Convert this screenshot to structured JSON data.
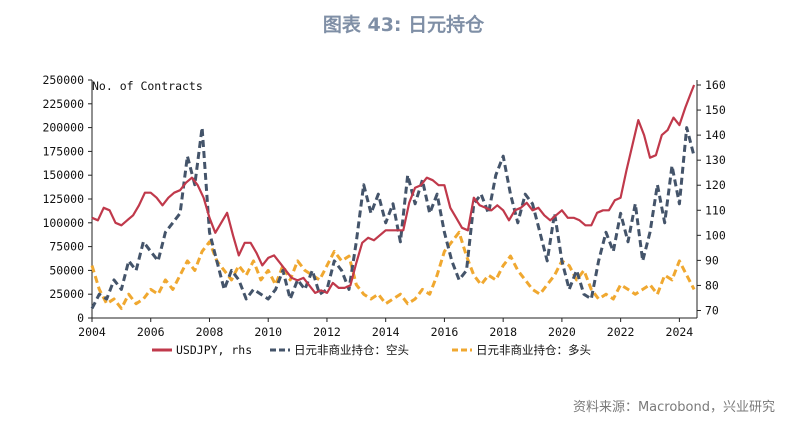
{
  "figure": {
    "title": "图表 43: 日元持仓",
    "source": "资料来源：Macrobond，兴业研究"
  },
  "chart_data": {
    "type": "line",
    "title": "图表 43: 日元持仓",
    "y_left_label": "No. of Contracts",
    "y_left_range": [
      0,
      250000
    ],
    "y_left_ticks": [
      "0",
      "25000",
      "50000",
      "75000",
      "100000",
      "125000",
      "150000",
      "175000",
      "200000",
      "225000",
      "250000"
    ],
    "y_right_range": [
      67,
      162
    ],
    "y_right_ticks": [
      "70",
      "80",
      "90",
      "100",
      "110",
      "120",
      "130",
      "140",
      "150",
      "160"
    ],
    "x_range": [
      2004,
      2024.6
    ],
    "x_ticks": [
      "2004",
      "2006",
      "2008",
      "2010",
      "2012",
      "2014",
      "2016",
      "2018",
      "2020",
      "2022",
      "2024"
    ],
    "legend_position": "bottom",
    "series": [
      {
        "name": "USDJPY, rhs",
        "axis": "right",
        "color": "#c0394b",
        "style": "solid",
        "x": [
          2004.0,
          2004.2,
          2004.4,
          2004.6,
          2004.8,
          2005.0,
          2005.2,
          2005.4,
          2005.6,
          2005.8,
          2006.0,
          2006.2,
          2006.4,
          2006.6,
          2006.8,
          2007.0,
          2007.2,
          2007.4,
          2007.6,
          2007.8,
          2008.0,
          2008.2,
          2008.4,
          2008.6,
          2008.8,
          2009.0,
          2009.2,
          2009.4,
          2009.6,
          2009.8,
          2010.0,
          2010.2,
          2010.4,
          2010.6,
          2010.8,
          2011.0,
          2011.2,
          2011.4,
          2011.6,
          2011.8,
          2012.0,
          2012.2,
          2012.4,
          2012.6,
          2012.8,
          2013.0,
          2013.2,
          2013.4,
          2013.6,
          2013.8,
          2014.0,
          2014.2,
          2014.4,
          2014.6,
          2014.8,
          2015.0,
          2015.2,
          2015.4,
          2015.6,
          2015.8,
          2016.0,
          2016.2,
          2016.4,
          2016.6,
          2016.8,
          2017.0,
          2017.2,
          2017.4,
          2017.6,
          2017.8,
          2018.0,
          2018.2,
          2018.4,
          2018.6,
          2018.8,
          2019.0,
          2019.2,
          2019.4,
          2019.6,
          2019.8,
          2020.0,
          2020.2,
          2020.4,
          2020.6,
          2020.8,
          2021.0,
          2021.2,
          2021.4,
          2021.6,
          2021.8,
          2022.0,
          2022.2,
          2022.4,
          2022.6,
          2022.8,
          2023.0,
          2023.2,
          2023.4,
          2023.6,
          2023.8,
          2024.0,
          2024.2,
          2024.4,
          2024.5
        ],
        "y": [
          107,
          106,
          111,
          110,
          105,
          104,
          106,
          108,
          112,
          117,
          117,
          115,
          112,
          115,
          117,
          118,
          121,
          123,
          120,
          115,
          107,
          101,
          105,
          109,
          100,
          92,
          97,
          97,
          93,
          88,
          91,
          92,
          89,
          86,
          83,
          82,
          83,
          80,
          77,
          78,
          77,
          81,
          79,
          79,
          80,
          89,
          97,
          99,
          98,
          100,
          102,
          102,
          102,
          102,
          113,
          119,
          120,
          123,
          122,
          120,
          120,
          111,
          107,
          103,
          102,
          115,
          112,
          111,
          110,
          112,
          110,
          106,
          110,
          111,
          113,
          110,
          111,
          108,
          106,
          108,
          110,
          107,
          107,
          106,
          104,
          104,
          109,
          110,
          110,
          114,
          115,
          126,
          136,
          146,
          140,
          131,
          132,
          140,
          142,
          147,
          144,
          151,
          157,
          160
        ]
      },
      {
        "name": "日元非商业持仓：空头",
        "axis": "left",
        "color": "#44546a",
        "style": "dashed",
        "x": [
          2004.0,
          2004.25,
          2004.5,
          2004.75,
          2005.0,
          2005.25,
          2005.5,
          2005.75,
          2006.0,
          2006.25,
          2006.5,
          2006.75,
          2007.0,
          2007.25,
          2007.5,
          2007.75,
          2008.0,
          2008.25,
          2008.5,
          2008.75,
          2009.0,
          2009.25,
          2009.5,
          2009.75,
          2010.0,
          2010.25,
          2010.5,
          2010.75,
          2011.0,
          2011.25,
          2011.5,
          2011.75,
          2012.0,
          2012.25,
          2012.5,
          2012.75,
          2013.0,
          2013.25,
          2013.5,
          2013.75,
          2014.0,
          2014.25,
          2014.5,
          2014.75,
          2015.0,
          2015.25,
          2015.5,
          2015.75,
          2016.0,
          2016.25,
          2016.5,
          2016.75,
          2017.0,
          2017.25,
          2017.5,
          2017.75,
          2018.0,
          2018.25,
          2018.5,
          2018.75,
          2019.0,
          2019.25,
          2019.5,
          2019.75,
          2020.0,
          2020.25,
          2020.5,
          2020.75,
          2021.0,
          2021.25,
          2021.5,
          2021.75,
          2022.0,
          2022.25,
          2022.5,
          2022.75,
          2023.0,
          2023.25,
          2023.5,
          2023.75,
          2024.0,
          2024.25,
          2024.5
        ],
        "y": [
          10000,
          25000,
          20000,
          40000,
          30000,
          60000,
          50000,
          80000,
          70000,
          60000,
          90000,
          100000,
          110000,
          170000,
          140000,
          200000,
          90000,
          60000,
          30000,
          50000,
          40000,
          20000,
          30000,
          25000,
          20000,
          30000,
          50000,
          20000,
          40000,
          30000,
          50000,
          25000,
          30000,
          60000,
          50000,
          30000,
          80000,
          140000,
          110000,
          130000,
          100000,
          120000,
          80000,
          150000,
          120000,
          145000,
          110000,
          130000,
          90000,
          60000,
          40000,
          50000,
          120000,
          130000,
          110000,
          150000,
          170000,
          130000,
          100000,
          130000,
          120000,
          90000,
          60000,
          110000,
          60000,
          30000,
          50000,
          25000,
          20000,
          60000,
          90000,
          70000,
          110000,
          80000,
          120000,
          60000,
          90000,
          140000,
          100000,
          160000,
          120000,
          200000,
          170000
        ]
      },
      {
        "name": "日元非商业持仓：多头",
        "axis": "left",
        "color": "#f0a830",
        "style": "dashed",
        "x": [
          2004.0,
          2004.25,
          2004.5,
          2004.75,
          2005.0,
          2005.25,
          2005.5,
          2005.75,
          2006.0,
          2006.25,
          2006.5,
          2006.75,
          2007.0,
          2007.25,
          2007.5,
          2007.75,
          2008.0,
          2008.25,
          2008.5,
          2008.75,
          2009.0,
          2009.25,
          2009.5,
          2009.75,
          2010.0,
          2010.25,
          2010.5,
          2010.75,
          2011.0,
          2011.25,
          2011.5,
          2011.75,
          2012.0,
          2012.25,
          2012.5,
          2012.75,
          2013.0,
          2013.25,
          2013.5,
          2013.75,
          2014.0,
          2014.25,
          2014.5,
          2014.75,
          2015.0,
          2015.25,
          2015.5,
          2015.75,
          2016.0,
          2016.25,
          2016.5,
          2016.75,
          2017.0,
          2017.25,
          2017.5,
          2017.75,
          2018.0,
          2018.25,
          2018.5,
          2018.75,
          2019.0,
          2019.25,
          2019.5,
          2019.75,
          2020.0,
          2020.25,
          2020.5,
          2020.75,
          2021.0,
          2021.25,
          2021.5,
          2021.75,
          2022.0,
          2022.25,
          2022.5,
          2022.75,
          2023.0,
          2023.25,
          2023.5,
          2023.75,
          2024.0,
          2024.25,
          2024.5
        ],
        "y": [
          55000,
          30000,
          15000,
          20000,
          10000,
          25000,
          15000,
          20000,
          30000,
          25000,
          40000,
          30000,
          45000,
          60000,
          50000,
          70000,
          80000,
          60000,
          50000,
          40000,
          55000,
          45000,
          60000,
          40000,
          50000,
          35000,
          55000,
          40000,
          60000,
          50000,
          45000,
          40000,
          55000,
          70000,
          60000,
          65000,
          35000,
          25000,
          20000,
          25000,
          15000,
          20000,
          25000,
          15000,
          20000,
          30000,
          25000,
          45000,
          70000,
          80000,
          90000,
          65000,
          45000,
          35000,
          45000,
          40000,
          55000,
          65000,
          50000,
          40000,
          30000,
          25000,
          35000,
          45000,
          60000,
          55000,
          40000,
          50000,
          30000,
          20000,
          25000,
          20000,
          35000,
          30000,
          25000,
          30000,
          35000,
          25000,
          45000,
          40000,
          60000,
          45000,
          30000
        ]
      }
    ]
  }
}
